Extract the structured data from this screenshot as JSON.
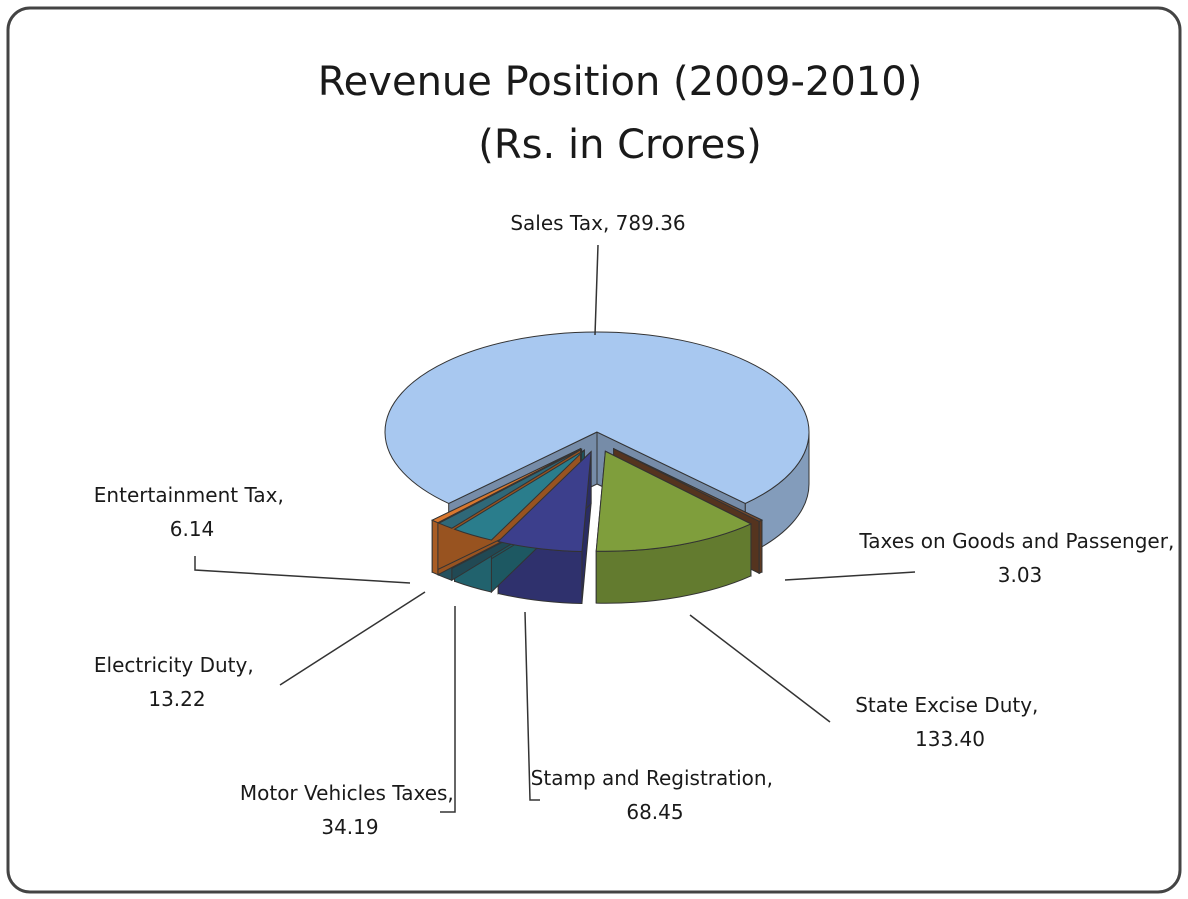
{
  "chart_data": {
    "type": "pie3d",
    "title": "Revenue Position (2009-2010)",
    "subtitle": "(Rs. in Crores)",
    "categories": [
      "Sales Tax",
      "Taxes on Goods and Passenger",
      "State Excise Duty",
      "Stamp and Registration",
      "Motor Vehicles Taxes",
      "Electricity Duty",
      "Entertainment Tax"
    ],
    "values": [
      789.36,
      3.03,
      133.4,
      68.45,
      34.19,
      13.22,
      6.14
    ],
    "value_labels": [
      "789.36",
      "3.03",
      "133.40",
      "68.45",
      "34.19",
      "13.22",
      "6.14"
    ],
    "separator": ", ",
    "colors": [
      "#a8c8f0",
      "#7a4a2c",
      "#7f9e3c",
      "#3c3f8c",
      "#2a7d8c",
      "#2f6878",
      "#d9772e"
    ]
  }
}
